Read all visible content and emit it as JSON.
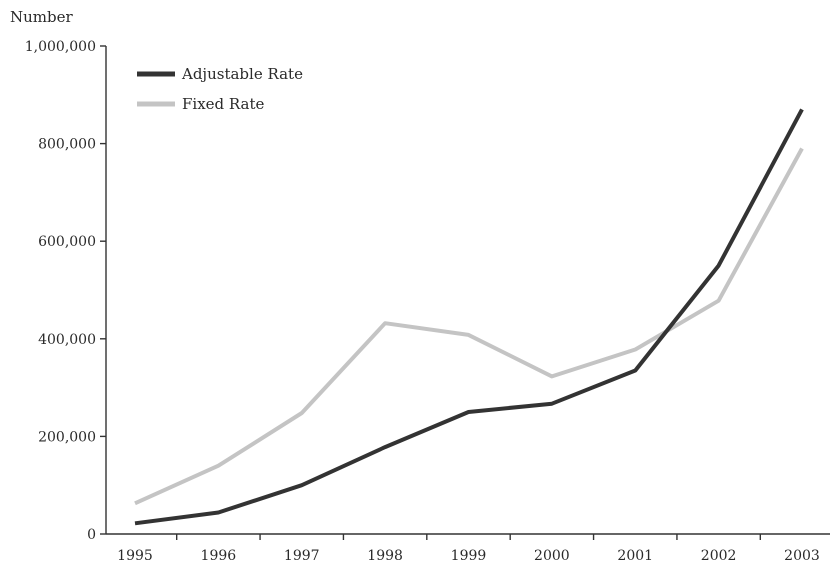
{
  "chart_data": {
    "type": "line",
    "title": "",
    "xlabel": "",
    "ylabel": "Number",
    "categories": [
      "1995",
      "1996",
      "1997",
      "1998",
      "1999",
      "2000",
      "2001",
      "2002",
      "2003"
    ],
    "ylim": [
      0,
      1000000
    ],
    "yticks": [
      0,
      200000,
      400000,
      600000,
      800000,
      1000000
    ],
    "ytick_labels": [
      "0",
      "200,000",
      "400,000",
      "600,000",
      "800,000",
      "1,000,000"
    ],
    "grid": false,
    "legend_position": "top-left",
    "series": [
      {
        "name": "Adjustable Rate",
        "color": "#333333",
        "values": [
          22000,
          44000,
          100000,
          178000,
          250000,
          267000,
          335000,
          550000,
          870000
        ]
      },
      {
        "name": "Fixed Rate",
        "color": "#c4c4c4",
        "values": [
          63000,
          140000,
          248000,
          432000,
          408000,
          323000,
          378000,
          478000,
          790000
        ]
      }
    ]
  }
}
